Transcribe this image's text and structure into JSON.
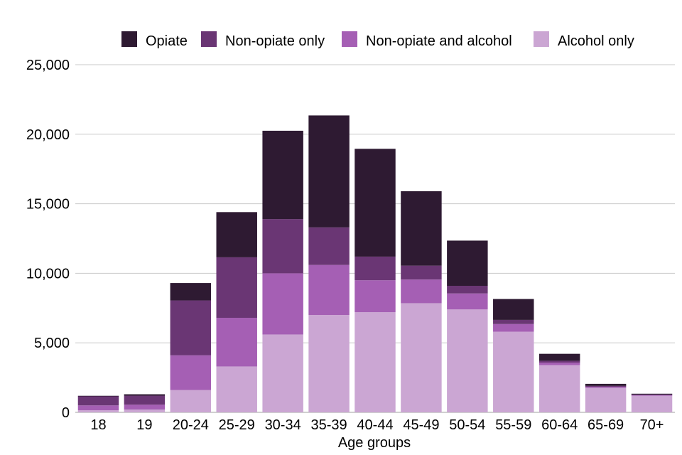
{
  "chart_data": {
    "type": "bar",
    "stacked": true,
    "title": "",
    "xlabel": "Age groups",
    "ylabel": "",
    "ylim": [
      0,
      25000
    ],
    "yticks": [
      0,
      5000,
      10000,
      15000,
      20000,
      25000
    ],
    "ytick_labels": [
      "0",
      "5,000",
      "10,000",
      "15,000",
      "20,000",
      "25,000"
    ],
    "grid": true,
    "legend_position": "top",
    "categories": [
      "18",
      "19",
      "20-24",
      "25-29",
      "30-34",
      "35-39",
      "40-44",
      "45-49",
      "50-54",
      "55-59",
      "60-64",
      "65-69",
      "70+"
    ],
    "series": [
      {
        "name": "Alcohol only",
        "color": "#cba6d3",
        "values": [
          150,
          200,
          1600,
          3300,
          5600,
          7000,
          7200,
          7850,
          7400,
          5800,
          3400,
          1750,
          1200
        ]
      },
      {
        "name": "Non-opiate and alcohol",
        "color": "#a55fb4",
        "values": [
          350,
          350,
          2500,
          3500,
          4400,
          3600,
          2300,
          1700,
          1150,
          550,
          180,
          80,
          40
        ]
      },
      {
        "name": "Non-opiate only",
        "color": "#6a3674",
        "values": [
          650,
          650,
          3950,
          4350,
          3900,
          2700,
          1700,
          1000,
          550,
          300,
          130,
          70,
          40
        ]
      },
      {
        "name": "Opiate",
        "color": "#2e1a32",
        "values": [
          40,
          100,
          1250,
          3250,
          6350,
          8050,
          7750,
          5350,
          3250,
          1500,
          500,
          150,
          60
        ]
      }
    ],
    "legend_order": [
      "Opiate",
      "Non-opiate only",
      "Non-opiate and alcohol",
      "Alcohol only"
    ]
  }
}
